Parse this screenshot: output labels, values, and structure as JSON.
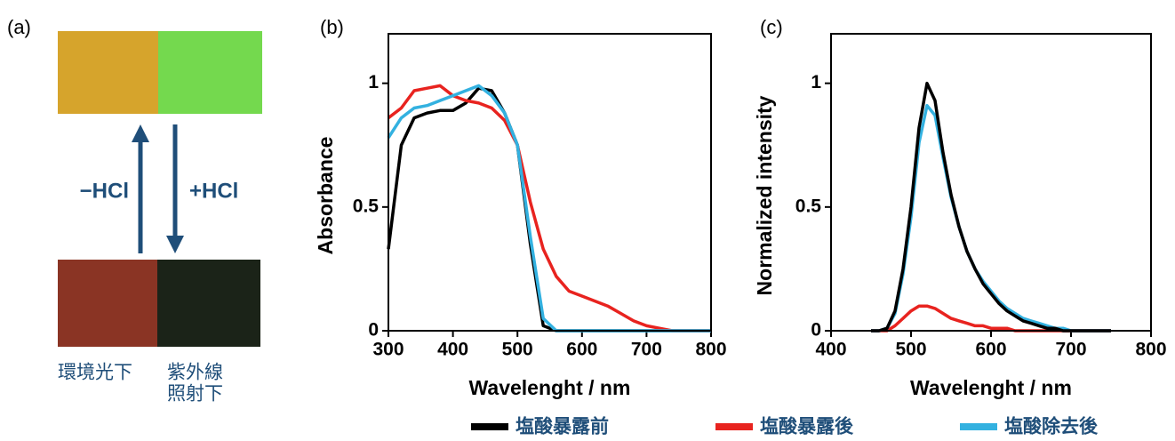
{
  "panel_a": {
    "label": "(a)",
    "left_arrow": "−HCl",
    "right_arrow": "+HCl",
    "caption_left": "環境光下",
    "caption_right": [
      "紫外線",
      "照射下"
    ]
  },
  "chart_data": [
    {
      "type": "line",
      "label": "(b)",
      "x_label": "Wavelenght / nm",
      "y_label": "Absorbance",
      "xlim": [
        300,
        800
      ],
      "ylim": [
        0,
        1.2
      ],
      "xticks": [
        300,
        400,
        500,
        600,
        700,
        800
      ],
      "yticks": [
        0,
        0.5,
        1
      ],
      "x": [
        300,
        320,
        340,
        360,
        380,
        400,
        420,
        440,
        460,
        480,
        500,
        520,
        540,
        560,
        580,
        600,
        620,
        640,
        660,
        680,
        700,
        720,
        740,
        760,
        780,
        800
      ],
      "series": [
        {
          "name": "塩酸暴露前",
          "color": "#000000",
          "values": [
            0.33,
            0.75,
            0.86,
            0.88,
            0.89,
            0.89,
            0.92,
            0.98,
            0.97,
            0.88,
            0.75,
            0.35,
            0.02,
            0,
            0,
            0,
            0,
            0,
            0,
            0,
            0,
            0,
            0,
            0,
            0,
            0
          ]
        },
        {
          "name": "塩酸暴露後",
          "color": "#e8231f",
          "values": [
            0.86,
            0.9,
            0.97,
            0.98,
            0.99,
            0.95,
            0.93,
            0.92,
            0.9,
            0.85,
            0.75,
            0.52,
            0.33,
            0.22,
            0.16,
            0.14,
            0.12,
            0.1,
            0.07,
            0.04,
            0.02,
            0.01,
            0,
            0,
            0,
            0
          ]
        },
        {
          "name": "塩酸除去後",
          "color": "#33b1e0",
          "values": [
            0.78,
            0.86,
            0.9,
            0.91,
            0.93,
            0.95,
            0.97,
            0.99,
            0.95,
            0.88,
            0.75,
            0.38,
            0.05,
            0,
            0,
            0,
            0,
            0,
            0,
            0,
            0,
            0,
            0,
            0,
            0,
            0
          ]
        }
      ]
    },
    {
      "type": "line",
      "label": "(c)",
      "x_label": "Wavelenght / nm",
      "y_label": "Normalized intensity",
      "xlim": [
        400,
        800
      ],
      "ylim": [
        0,
        1.2
      ],
      "xticks": [
        400,
        500,
        600,
        700,
        800
      ],
      "yticks": [
        0,
        0.5,
        1
      ],
      "x": [
        450,
        460,
        470,
        480,
        490,
        500,
        510,
        520,
        530,
        540,
        550,
        560,
        570,
        580,
        590,
        600,
        610,
        620,
        630,
        640,
        650,
        660,
        670,
        680,
        690,
        700,
        710,
        720,
        730,
        740,
        750
      ],
      "series": [
        {
          "color": "#e8231f",
          "values": [
            0,
            0,
            0,
            0.02,
            0.05,
            0.08,
            0.1,
            0.1,
            0.09,
            0.07,
            0.05,
            0.04,
            0.03,
            0.02,
            0.02,
            0.01,
            0.01,
            0.01,
            0,
            0,
            0,
            0,
            0,
            0,
            0,
            0,
            0,
            0,
            0,
            0,
            0
          ]
        },
        {
          "color": "#33b1e0",
          "values": [
            0,
            0,
            0.01,
            0.07,
            0.23,
            0.46,
            0.76,
            0.91,
            0.87,
            0.7,
            0.54,
            0.42,
            0.32,
            0.25,
            0.2,
            0.16,
            0.12,
            0.09,
            0.07,
            0.05,
            0.04,
            0.03,
            0.02,
            0.01,
            0.01,
            0,
            0,
            0,
            0,
            0,
            0
          ]
        },
        {
          "color": "#000000",
          "values": [
            0,
            0,
            0.01,
            0.08,
            0.25,
            0.5,
            0.82,
            1.0,
            0.93,
            0.72,
            0.55,
            0.42,
            0.32,
            0.25,
            0.19,
            0.15,
            0.11,
            0.08,
            0.06,
            0.04,
            0.03,
            0.02,
            0.01,
            0.01,
            0,
            0,
            0,
            0,
            0,
            0,
            0
          ]
        }
      ]
    }
  ]
}
